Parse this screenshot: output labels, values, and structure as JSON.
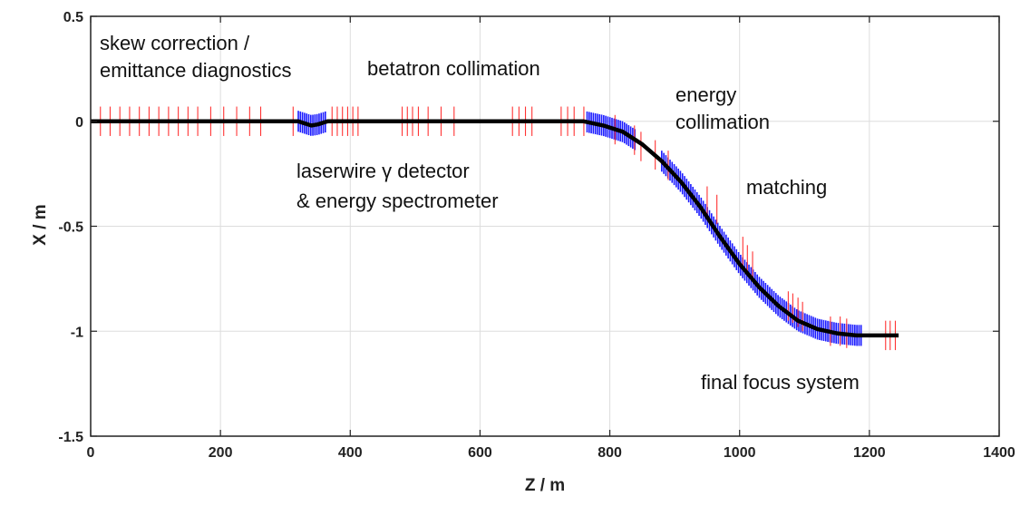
{
  "chart_data": {
    "type": "line",
    "xlabel": "Z / m",
    "ylabel": "X / m",
    "xlim": [
      0,
      1400
    ],
    "ylim": [
      -1.5,
      0.5
    ],
    "xticks": [
      0,
      200,
      400,
      600,
      800,
      1000,
      1200,
      1400
    ],
    "xtick_labels": [
      "0",
      "200",
      "400",
      "600",
      "800",
      "1000",
      "1200",
      "1400"
    ],
    "yticks": [
      0.5,
      0,
      -0.5,
      -1,
      -1.5
    ],
    "ytick_labels": [
      "0.5",
      "0",
      "-0.5",
      "-1",
      "-1.5"
    ],
    "grid": true,
    "colors": {
      "beamline": "#000000",
      "quadrupole": "#ff3333",
      "bend": "#1a1aff",
      "grid": "#dddddd"
    },
    "series": [
      {
        "name": "beamline",
        "x": [
          0,
          320,
          330,
          340,
          350,
          360,
          365,
          400,
          600,
          760,
          790,
          820,
          850,
          880,
          910,
          940,
          970,
          1000,
          1030,
          1060,
          1090,
          1120,
          1150,
          1180,
          1210,
          1245
        ],
        "y": [
          0,
          0,
          -0.01,
          -0.02,
          -0.015,
          -0.005,
          0,
          0,
          0,
          0,
          -0.02,
          -0.05,
          -0.11,
          -0.19,
          -0.29,
          -0.41,
          -0.55,
          -0.68,
          -0.79,
          -0.88,
          -0.95,
          -0.99,
          -1.01,
          -1.02,
          -1.02,
          -1.02
        ]
      }
    ],
    "quadrupoles": {
      "half_height": 0.07,
      "positions": [
        [
          15,
          0
        ],
        [
          30,
          0
        ],
        [
          45,
          0
        ],
        [
          60,
          0
        ],
        [
          75,
          0
        ],
        [
          90,
          0
        ],
        [
          105,
          0
        ],
        [
          120,
          0
        ],
        [
          135,
          0
        ],
        [
          150,
          0
        ],
        [
          165,
          0
        ],
        [
          185,
          0
        ],
        [
          205,
          0
        ],
        [
          225,
          0
        ],
        [
          245,
          0
        ],
        [
          262,
          0
        ],
        [
          312,
          0
        ],
        [
          372,
          0
        ],
        [
          380,
          0
        ],
        [
          388,
          0
        ],
        [
          396,
          0
        ],
        [
          404,
          0
        ],
        [
          412,
          0
        ],
        [
          480,
          0
        ],
        [
          488,
          0
        ],
        [
          496,
          0
        ],
        [
          505,
          0
        ],
        [
          520,
          0
        ],
        [
          540,
          0
        ],
        [
          560,
          0
        ],
        [
          650,
          0
        ],
        [
          660,
          0
        ],
        [
          670,
          0
        ],
        [
          680,
          0
        ],
        [
          725,
          0
        ],
        [
          735,
          0
        ],
        [
          745,
          0
        ],
        [
          760,
          0
        ],
        [
          808,
          -0.04
        ],
        [
          838,
          -0.09
        ],
        [
          848,
          -0.12
        ],
        [
          870,
          -0.16
        ],
        [
          890,
          -0.21
        ],
        [
          950,
          -0.38
        ],
        [
          965,
          -0.42
        ],
        [
          1005,
          -0.62
        ],
        [
          1012,
          -0.66
        ],
        [
          1020,
          -0.69
        ],
        [
          1075,
          -0.88
        ],
        [
          1082,
          -0.89
        ],
        [
          1090,
          -0.91
        ],
        [
          1097,
          -0.93
        ],
        [
          1140,
          -1.0
        ],
        [
          1155,
          -1.0
        ],
        [
          1165,
          -1.01
        ],
        [
          1225,
          -1.02
        ],
        [
          1232,
          -1.02
        ],
        [
          1240,
          -1.02
        ]
      ]
    },
    "bends": {
      "half_height": 0.05,
      "ranges": [
        [
          320,
          362
        ],
        [
          765,
          840
        ],
        [
          880,
          1190
        ]
      ]
    },
    "annotations": [
      {
        "lines": [
          "skew correction /",
          "emittance diagnostics"
        ]
      },
      {
        "lines": [
          "betatron collimation"
        ]
      },
      {
        "lines": [
          "energy",
          "collimation"
        ]
      },
      {
        "lines": [
          "laserwire γ detector",
          "& energy spectrometer"
        ]
      },
      {
        "lines": [
          "matching"
        ]
      },
      {
        "lines": [
          "final focus system"
        ]
      }
    ]
  }
}
